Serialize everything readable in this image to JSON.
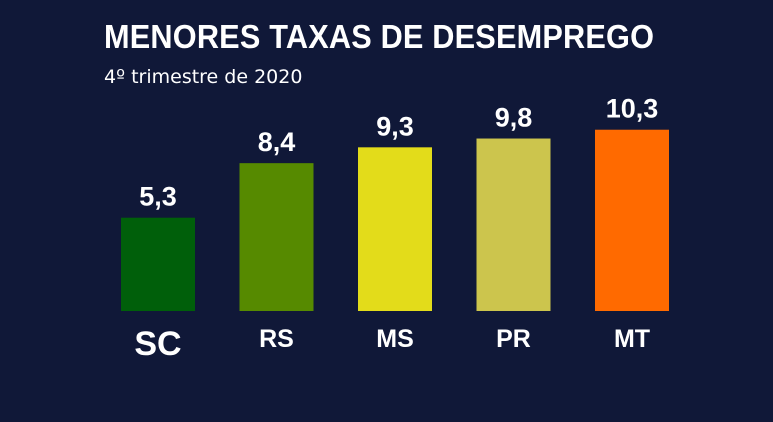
{
  "chart_data": {
    "type": "bar",
    "title": "MENORES TAXAS DE DESEMPREGO",
    "subtitle": "4º trimestre de 2020",
    "categories": [
      "SC",
      "RS",
      "MS",
      "PR",
      "MT"
    ],
    "values": [
      5.3,
      8.4,
      9.3,
      9.8,
      10.3
    ],
    "value_labels": [
      "5,3",
      "8,4",
      "9,3",
      "9,8",
      "10,3"
    ],
    "colors": [
      "#005f0a",
      "#568a00",
      "#e3dc1a",
      "#ccc54d",
      "#ff6a00"
    ],
    "grid": false,
    "legend": "none"
  }
}
